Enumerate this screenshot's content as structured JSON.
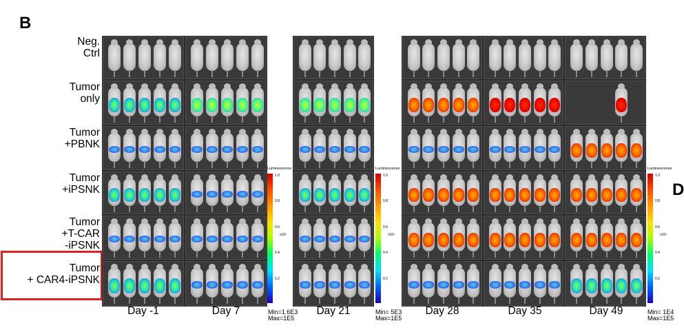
{
  "figure": {
    "panel_letter": "B",
    "panel_letter_next": "D",
    "rows": [
      {
        "line1": "Neg.",
        "line2": "Ctrl",
        "line3": ""
      },
      {
        "line1": "Tumor",
        "line2": "only",
        "line3": ""
      },
      {
        "line1": "Tumor",
        "line2": "+PBNK",
        "line3": ""
      },
      {
        "line1": "Tumor",
        "line2": "+iPSNK",
        "line3": ""
      },
      {
        "line1": "Tumor",
        "line2": "+T-CAR",
        "line3": "-iPSNK"
      },
      {
        "line1": "Tumor",
        "line2": "+ CAR4-iPSNK",
        "line3": ""
      }
    ],
    "highlighted_row": "Tumor + CAR4-iPSNK",
    "highlight_color": "#e02020",
    "days": [
      "Day -1",
      "Day 7",
      "Day 21",
      "Day 28",
      "Day 35",
      "Day 49"
    ],
    "scales": [
      {
        "title": "Luminescence",
        "top": "1.0",
        "t8": "0.8",
        "t6": "0.6",
        "t4": "0.4",
        "t2": "0.2",
        "unit": "x10⁵",
        "min": "Min=1.6E3",
        "max": "Max=1E5"
      },
      {
        "title": "Luminescence",
        "top": "1.0",
        "t8": "0.8",
        "t6": "0.6",
        "t4": "0.4",
        "t2": "0.2",
        "unit": "x10⁵",
        "min": "Min= 5E3",
        "max": "Max=1E5"
      },
      {
        "title": "Luminescence",
        "top": "1.0",
        "t8": "0.8",
        "t6": "0.6",
        "t4": "0.4",
        "t2": "0.2",
        "unit": "x10⁵",
        "min": "Min= 1E4",
        "max": "Max=1E5"
      }
    ]
  }
}
